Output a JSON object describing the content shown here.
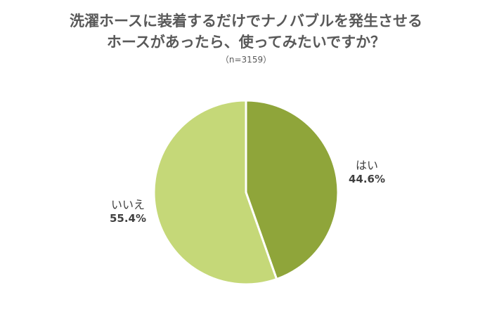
{
  "title_lines": [
    "洗濯ホースに装着するだけでナノバブルを発生させる",
    "ホースがあったら、使ってみたいですか？"
  ],
  "subtitle": "（n=3159）",
  "chart_data": {
    "type": "pie",
    "title": "洗濯ホースに装着するだけでナノバブルを発生させるホースがあったら、使ってみたいですか？",
    "subtitle": "（n=3159）",
    "slices": [
      {
        "label": "はい",
        "value": 44.6,
        "display": "44.6%",
        "color": "#8fa53a"
      },
      {
        "label": "いいえ",
        "value": 55.4,
        "display": "55.4%",
        "color": "#c5d878"
      }
    ]
  }
}
